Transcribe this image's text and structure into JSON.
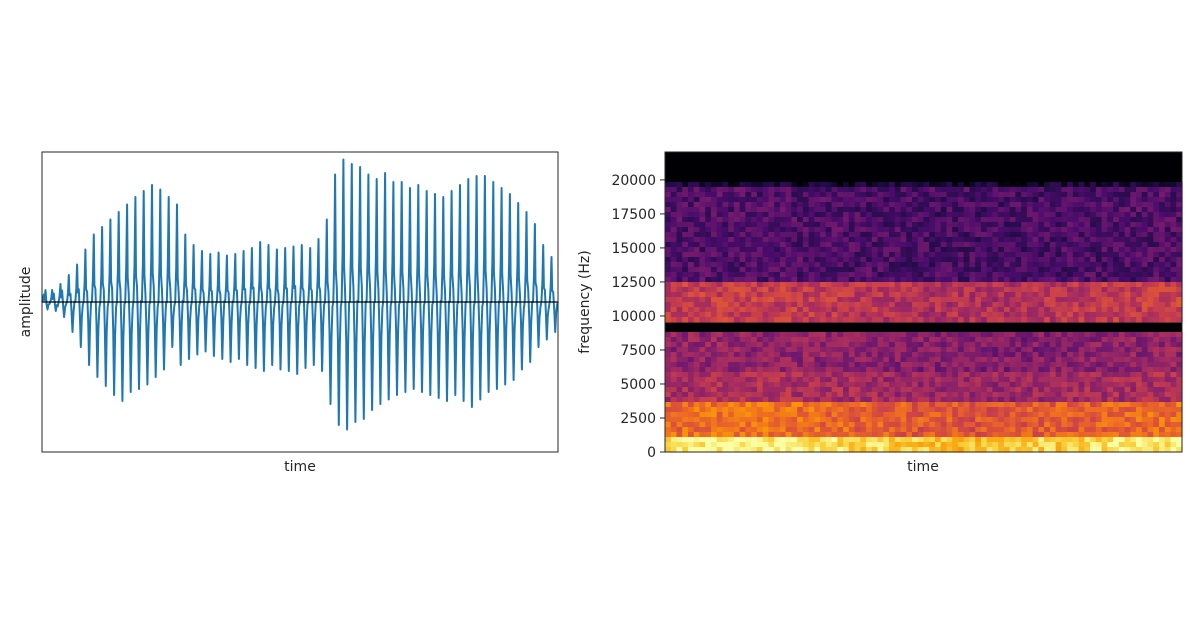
{
  "chart_data": [
    {
      "type": "line",
      "title": "",
      "xlabel": "time",
      "ylabel": "amplitude",
      "x_ticks": [],
      "y_ticks": [],
      "baseline": 0,
      "line_color": "#1f77b4",
      "baseline_color": "#000000",
      "ylim": [
        -1.0,
        1.0
      ],
      "series": [
        {
          "description": "periodic speech-like waveform; per-cycle positive and negative peak amplitudes (normalized)",
          "cycles": 62,
          "pos_peaks": [
            0.05,
            0.08,
            0.12,
            0.18,
            0.25,
            0.35,
            0.45,
            0.5,
            0.55,
            0.6,
            0.65,
            0.7,
            0.74,
            0.78,
            0.75,
            0.7,
            0.65,
            0.45,
            0.38,
            0.34,
            0.32,
            0.33,
            0.31,
            0.32,
            0.34,
            0.36,
            0.4,
            0.38,
            0.35,
            0.36,
            0.37,
            0.38,
            0.36,
            0.42,
            0.55,
            0.85,
            0.95,
            0.92,
            0.9,
            0.85,
            0.82,
            0.86,
            0.8,
            0.8,
            0.76,
            0.78,
            0.74,
            0.72,
            0.7,
            0.74,
            0.78,
            0.82,
            0.84,
            0.84,
            0.8,
            0.76,
            0.72,
            0.66,
            0.6,
            0.52,
            0.38,
            0.3
          ],
          "neg_peaks": [
            -0.05,
            -0.06,
            -0.1,
            -0.2,
            -0.3,
            -0.42,
            -0.5,
            -0.56,
            -0.62,
            -0.66,
            -0.6,
            -0.58,
            -0.55,
            -0.5,
            -0.45,
            -0.3,
            -0.42,
            -0.38,
            -0.35,
            -0.33,
            -0.36,
            -0.38,
            -0.4,
            -0.38,
            -0.42,
            -0.44,
            -0.46,
            -0.42,
            -0.45,
            -0.46,
            -0.48,
            -0.44,
            -0.42,
            -0.46,
            -0.68,
            -0.82,
            -0.85,
            -0.8,
            -0.78,
            -0.72,
            -0.68,
            -0.65,
            -0.62,
            -0.6,
            -0.58,
            -0.6,
            -0.62,
            -0.64,
            -0.66,
            -0.62,
            -0.66,
            -0.7,
            -0.65,
            -0.6,
            -0.58,
            -0.55,
            -0.52,
            -0.45,
            -0.4,
            -0.3,
            -0.25,
            -0.2
          ]
        }
      ]
    },
    {
      "type": "heatmap",
      "title": "",
      "xlabel": "time",
      "ylabel": "frequency (Hz)",
      "y_ticks": [
        0,
        2500,
        5000,
        7500,
        10000,
        12500,
        15000,
        17500,
        20000
      ],
      "ylim": [
        0,
        22050
      ],
      "colormap": "magma",
      "colormap_stops": [
        "#000004",
        "#1b0c41",
        "#4a0c6b",
        "#781c6d",
        "#a52c60",
        "#cf4446",
        "#ed6925",
        "#fb9b06",
        "#f7d13d",
        "#fcffa4"
      ],
      "description": "spectrogram: energy concentrated below 3500 Hz, formant bands near 10000-12500 Hz, no energy above ~20000 Hz",
      "bands": [
        {
          "from_hz": 0,
          "to_hz": 1000,
          "level": 0.88
        },
        {
          "from_hz": 1000,
          "to_hz": 3500,
          "level": 0.62
        },
        {
          "from_hz": 3500,
          "to_hz": 6000,
          "level": 0.42
        },
        {
          "from_hz": 6000,
          "to_hz": 9000,
          "level": 0.36
        },
        {
          "from_hz": 9500,
          "to_hz": 12500,
          "level": 0.48
        },
        {
          "from_hz": 12500,
          "to_hz": 19500,
          "level": 0.22
        },
        {
          "from_hz": 19500,
          "to_hz": 20000,
          "level": 0.08
        },
        {
          "from_hz": 20000,
          "to_hz": 22050,
          "level": 0.0
        }
      ]
    }
  ]
}
